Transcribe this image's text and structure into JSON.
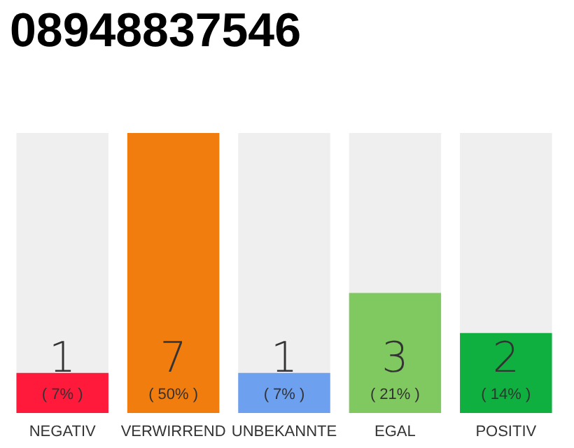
{
  "chart_data": {
    "type": "bar",
    "title": "08948837546",
    "categories": [
      "NEGATIV",
      "VERWIRREND",
      "UNBEKANNTE",
      "EGAL",
      "POSITIV"
    ],
    "values": [
      1,
      7,
      1,
      3,
      2
    ],
    "colors": [
      "#ff1a3c",
      "#f07d0d",
      "#6ea0f0",
      "#80c860",
      "#10b040"
    ],
    "value_labels": [
      "1\n( 7% )",
      "7\n( 50% )",
      "1\n( 7% )",
      "3\n( 21% )",
      "2\n( 14% )"
    ]
  }
}
